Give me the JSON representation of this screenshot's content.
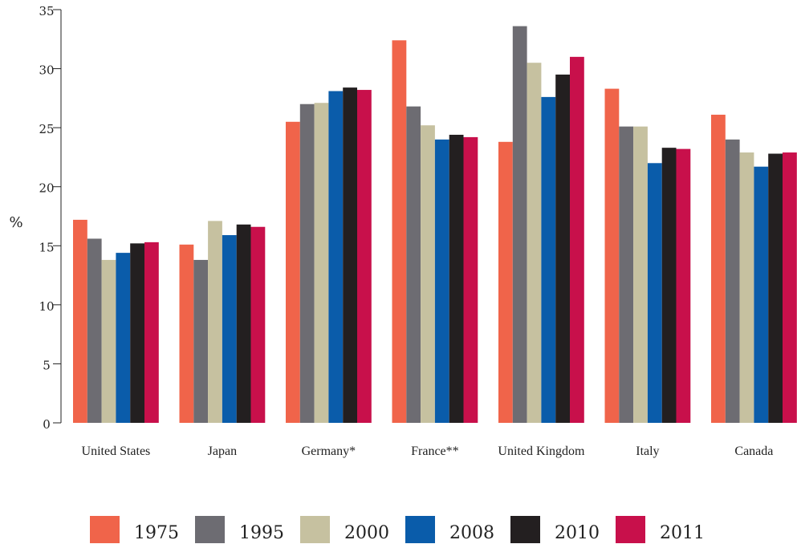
{
  "chart_data": {
    "type": "bar",
    "ylabel": "%",
    "ylim": [
      0,
      35
    ],
    "yticks": [
      "0",
      "5",
      "10",
      "15",
      "20",
      "25",
      "30",
      "35"
    ],
    "categories": [
      "United States",
      "Japan",
      "Germany*",
      "France**",
      "United Kingdom",
      "Italy",
      "Canada"
    ],
    "series": [
      {
        "name": "1975",
        "color": "#F0644A",
        "values": [
          17.2,
          15.1,
          25.5,
          32.4,
          23.8,
          28.3,
          26.1
        ]
      },
      {
        "name": "1995",
        "color": "#6D6C72",
        "values": [
          15.6,
          13.8,
          27.0,
          26.8,
          33.6,
          25.1,
          24.0
        ]
      },
      {
        "name": "2000",
        "color": "#C6C1A0",
        "values": [
          13.8,
          17.1,
          27.1,
          25.2,
          30.5,
          25.1,
          22.9
        ]
      },
      {
        "name": "2008",
        "color": "#0A5CAA",
        "values": [
          14.4,
          15.9,
          28.1,
          24.0,
          27.6,
          22.0,
          21.7
        ]
      },
      {
        "name": "2010",
        "color": "#231F20",
        "values": [
          15.2,
          16.8,
          28.4,
          24.4,
          29.5,
          23.3,
          22.8
        ]
      },
      {
        "name": "2011",
        "color": "#C8104B",
        "values": [
          15.3,
          16.6,
          28.2,
          24.2,
          31.0,
          23.2,
          22.9
        ]
      }
    ],
    "grid": false,
    "legend_position": "bottom"
  }
}
